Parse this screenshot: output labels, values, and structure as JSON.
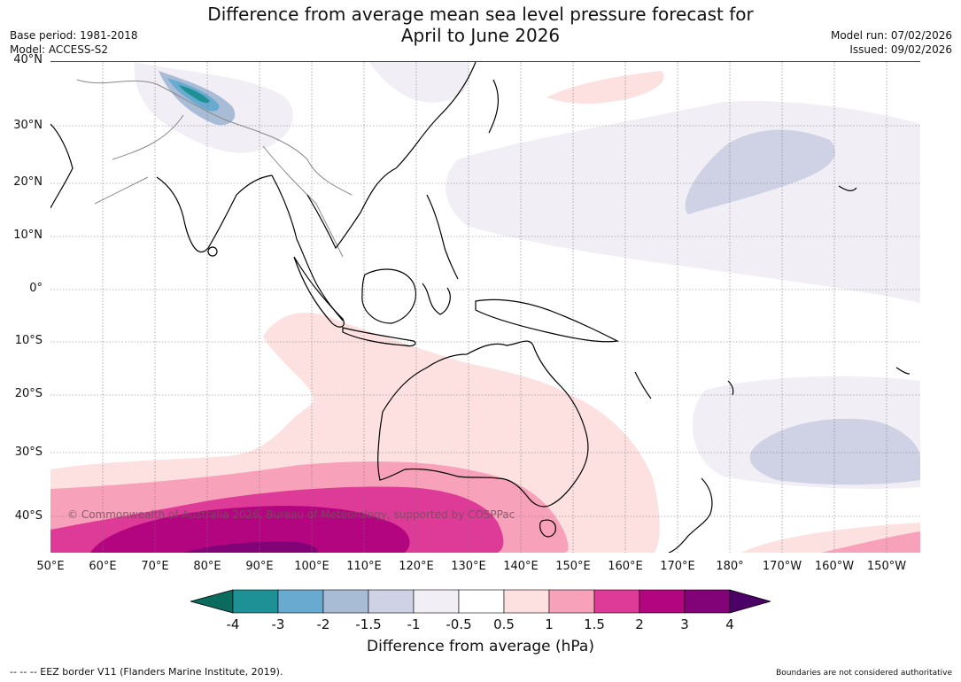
{
  "title": {
    "line1": "Difference from average mean sea level pressure forecast for",
    "line2": "April to June 2026"
  },
  "meta": {
    "base_period": "Base period: 1981-2018",
    "model": "Model: ACCESS-S2",
    "model_run": "Model run: 07/02/2026",
    "issued": "Issued: 09/02/2026"
  },
  "map": {
    "lat_labels": [
      "40°N",
      "30°N",
      "20°N",
      "10°N",
      "0°",
      "10°S",
      "20°S",
      "30°S",
      "40°S"
    ],
    "lon_labels": [
      "50°E",
      "60°E",
      "70°E",
      "80°E",
      "90°E",
      "100°E",
      "110°E",
      "120°E",
      "130°E",
      "140°E",
      "150°E",
      "160°E",
      "170°E",
      "180°",
      "170°W",
      "160°W",
      "150°W"
    ],
    "watermark": "© Commonwealth of Australia 2026, Bureau of Meteorology, supported by COSPPac"
  },
  "colorbar": {
    "ticks": [
      "-4",
      "-3",
      "-2",
      "-1.5",
      "-1",
      "-0.5",
      "0.5",
      "1",
      "1.5",
      "2",
      "3",
      "4"
    ],
    "colors": [
      "#0b6b5e",
      "#1e9196",
      "#69aad0",
      "#a8bcd6",
      "#cfd2e5",
      "#f1eff5",
      "#ffffff",
      "#fde0e0",
      "#f8a1bb",
      "#de3a97",
      "#b3057f",
      "#820278",
      "#4c0166"
    ],
    "label": "Difference from average (hPa)"
  },
  "footer": {
    "eez": "--  --  -- EEZ border V11 (Flanders Marine Institute, 2019).",
    "disclaimer": "Boundaries are not considered authoritative"
  }
}
